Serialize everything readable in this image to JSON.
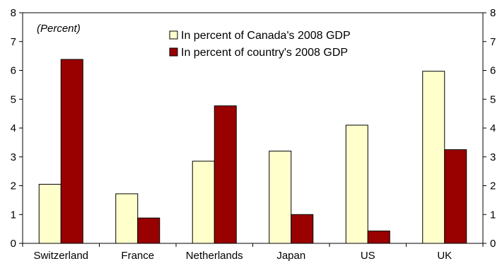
{
  "chart_data": {
    "type": "bar",
    "title": "",
    "annotation": "(Percent)",
    "xlabel": "",
    "ylabel": "",
    "categories": [
      "Switzerland",
      "France",
      "Netherlands",
      "Japan",
      "US",
      "UK"
    ],
    "series": [
      {
        "name": "In percent of Canada's 2008 GDP",
        "color": "#ffffcc",
        "values": [
          2.05,
          1.72,
          2.85,
          3.2,
          4.1,
          5.97
        ]
      },
      {
        "name": "In percent of country's 2008 GDP",
        "color": "#990000",
        "values": [
          6.38,
          0.88,
          4.77,
          1.0,
          0.43,
          3.25
        ]
      }
    ],
    "ylim": [
      0,
      8
    ],
    "yticks": [
      "0",
      "1",
      "2",
      "3",
      "4",
      "5",
      "6",
      "7",
      "8"
    ],
    "y_axis_sides": "both",
    "grid": false,
    "legend_position": "top-center"
  }
}
